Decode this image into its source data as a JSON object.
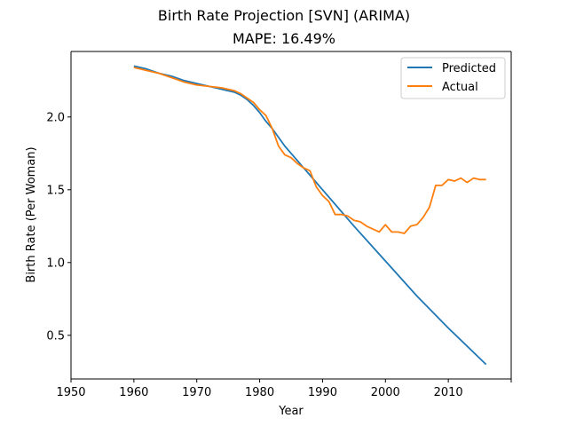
{
  "chart_data": {
    "type": "line",
    "title": "Birth Rate Projection [SVN] (ARIMA)",
    "subtitle": "MAPE: 16.49%",
    "xlabel": "Year",
    "ylabel": "Birth Rate (Per Woman)",
    "xlim": [
      1950,
      2020
    ],
    "ylim": [
      0.2,
      2.45
    ],
    "x_ticks": [
      1950,
      1960,
      1970,
      1980,
      1990,
      2000,
      2010,
      2020
    ],
    "x_tick_labels": [
      "1950",
      "1960",
      "1970",
      "1980",
      "1990",
      "2000",
      "2010",
      ""
    ],
    "y_ticks": [
      0.5,
      1.0,
      1.5,
      2.0
    ],
    "y_tick_labels": [
      "0.5",
      "1.0",
      "1.5",
      "2.0"
    ],
    "legend_position": "top-right",
    "grid": false,
    "series": [
      {
        "name": "Predicted",
        "color": "#1f77b4",
        "x": [
          1960,
          1962,
          1964,
          1966,
          1968,
          1970,
          1972,
          1974,
          1976,
          1977,
          1978,
          1979,
          1980,
          1981,
          1982,
          1983,
          1984,
          1985,
          1986,
          1987,
          1988,
          1989,
          1990,
          1995,
          2000,
          2005,
          2010,
          2016
        ],
        "y": [
          2.35,
          2.33,
          2.3,
          2.28,
          2.25,
          2.23,
          2.21,
          2.19,
          2.17,
          2.15,
          2.12,
          2.08,
          2.03,
          1.97,
          1.92,
          1.86,
          1.8,
          1.75,
          1.7,
          1.65,
          1.6,
          1.55,
          1.5,
          1.25,
          1.01,
          0.77,
          0.55,
          0.3
        ]
      },
      {
        "name": "Actual",
        "color": "#ff7f0e",
        "x": [
          1960,
          1962,
          1964,
          1966,
          1968,
          1970,
          1972,
          1974,
          1976,
          1977,
          1978,
          1979,
          1980,
          1981,
          1982,
          1983,
          1984,
          1985,
          1986,
          1987,
          1988,
          1989,
          1990,
          1991,
          1992,
          1993,
          1994,
          1995,
          1996,
          1997,
          1998,
          1999,
          2000,
          2001,
          2002,
          2003,
          2004,
          2005,
          2006,
          2007,
          2008,
          2009,
          2010,
          2011,
          2012,
          2013,
          2014,
          2015,
          2016
        ],
        "y": [
          2.34,
          2.32,
          2.3,
          2.27,
          2.24,
          2.22,
          2.21,
          2.2,
          2.18,
          2.16,
          2.13,
          2.1,
          2.05,
          2.01,
          1.92,
          1.8,
          1.74,
          1.72,
          1.68,
          1.65,
          1.63,
          1.52,
          1.46,
          1.42,
          1.33,
          1.33,
          1.32,
          1.29,
          1.28,
          1.25,
          1.23,
          1.21,
          1.26,
          1.21,
          1.21,
          1.2,
          1.25,
          1.26,
          1.31,
          1.38,
          1.53,
          1.53,
          1.57,
          1.56,
          1.58,
          1.55,
          1.58,
          1.57,
          1.57
        ]
      }
    ]
  }
}
